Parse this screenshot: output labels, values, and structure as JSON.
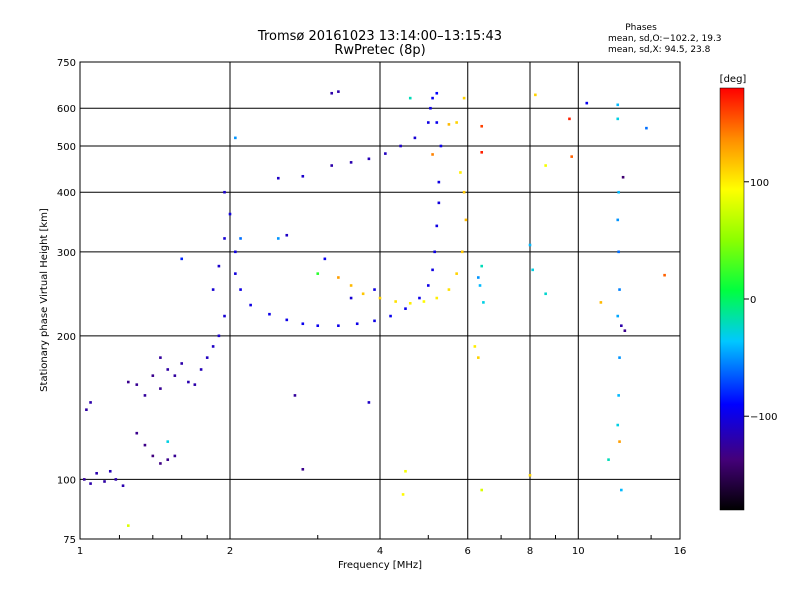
{
  "header": {
    "title_line1": "Tromsø 20161023 13:14:00–13:15:43",
    "title_line2": "RwPretec (8p)"
  },
  "info": {
    "title": "Phases",
    "line_o": "mean, sd,O:−102.2, 19.3",
    "line_x": "mean, sd,X:  94.5, 23.8"
  },
  "colorbar": {
    "unit": "[deg]",
    "range": [
      -180,
      180
    ],
    "ticks": [
      {
        "value": 100,
        "label": "100"
      },
      {
        "value": 0,
        "label": "0"
      },
      {
        "value": -100,
        "label": "−100"
      }
    ]
  },
  "chart_data": {
    "type": "scatter",
    "title": "Tromsø 20161023 13:14:00–13:15:43",
    "subtitle": "RwPretec (8p)",
    "xlabel": "Frequency [MHz]",
    "ylabel": "Stationary phase Virtual Height [km]",
    "x_scale": "log",
    "y_scale": "log",
    "xlim": [
      1,
      16
    ],
    "ylim": [
      75,
      750
    ],
    "x_ticks": [
      {
        "value": 1,
        "label": "1"
      },
      {
        "value": 2,
        "label": "2"
      },
      {
        "value": 4,
        "label": "4"
      },
      {
        "value": 6,
        "label": "6"
      },
      {
        "value": 8,
        "label": "8"
      },
      {
        "value": 10,
        "label": "10"
      },
      {
        "value": 16,
        "label": "16"
      }
    ],
    "y_ticks": [
      {
        "value": 75,
        "label": "75"
      },
      {
        "value": 100,
        "label": "100"
      },
      {
        "value": 200,
        "label": "200"
      },
      {
        "value": 300,
        "label": "300"
      },
      {
        "value": 400,
        "label": "400"
      },
      {
        "value": 500,
        "label": "500"
      },
      {
        "value": 600,
        "label": "600"
      },
      {
        "value": 750,
        "label": "750"
      }
    ],
    "grid": true,
    "color_by": "phase_deg",
    "series": [
      {
        "points": [
          [
            1.02,
            100,
            -125
          ],
          [
            1.05,
            98,
            -120
          ],
          [
            1.08,
            103,
            -118
          ],
          [
            1.12,
            99,
            -122
          ],
          [
            1.15,
            104,
            -115
          ],
          [
            1.18,
            100,
            -120
          ],
          [
            1.22,
            97,
            -118
          ],
          [
            1.03,
            140,
            -122
          ],
          [
            1.05,
            145,
            -120
          ],
          [
            1.25,
            160,
            -130
          ],
          [
            1.3,
            158,
            -128
          ],
          [
            1.35,
            150,
            -125
          ],
          [
            1.4,
            165,
            -130
          ],
          [
            1.45,
            155,
            -128
          ],
          [
            1.3,
            125,
            -130
          ],
          [
            1.35,
            118,
            -132
          ],
          [
            1.4,
            112,
            -135
          ],
          [
            1.45,
            108,
            -133
          ],
          [
            1.5,
            110,
            -130
          ],
          [
            1.55,
            112,
            -128
          ],
          [
            1.45,
            180,
            -125
          ],
          [
            1.5,
            170,
            -122
          ],
          [
            1.55,
            165,
            -124
          ],
          [
            1.6,
            175,
            -120
          ],
          [
            1.65,
            160,
            -118
          ],
          [
            1.7,
            158,
            -120
          ],
          [
            1.75,
            170,
            -115
          ],
          [
            1.8,
            180,
            -112
          ],
          [
            1.85,
            190,
            -110
          ],
          [
            1.9,
            200,
            -108
          ],
          [
            1.95,
            220,
            -105
          ],
          [
            1.85,
            250,
            -105
          ],
          [
            1.9,
            280,
            -108
          ],
          [
            1.95,
            320,
            -105
          ],
          [
            2.0,
            360,
            -102
          ],
          [
            1.95,
            400,
            -108
          ],
          [
            2.05,
            300,
            -100
          ],
          [
            2.05,
            270,
            -102
          ],
          [
            2.1,
            250,
            -100
          ],
          [
            2.2,
            232,
            -100
          ],
          [
            2.4,
            222,
            -98
          ],
          [
            2.6,
            216,
            -98
          ],
          [
            2.8,
            212,
            -96
          ],
          [
            3.0,
            210,
            -96
          ],
          [
            3.3,
            210,
            -98
          ],
          [
            3.6,
            212,
            -98
          ],
          [
            3.9,
            215,
            -98
          ],
          [
            4.2,
            220,
            -96
          ],
          [
            4.5,
            228,
            -96
          ],
          [
            4.8,
            240,
            -98
          ],
          [
            5.0,
            255,
            -98
          ],
          [
            5.1,
            275,
            -100
          ],
          [
            5.15,
            300,
            -100
          ],
          [
            5.2,
            340,
            -100
          ],
          [
            5.25,
            380,
            -102
          ],
          [
            5.25,
            420,
            -100
          ],
          [
            5.3,
            500,
            -98
          ],
          [
            5.2,
            560,
            -96
          ],
          [
            2.5,
            428,
            -110
          ],
          [
            2.8,
            432,
            -108
          ],
          [
            3.2,
            455,
            -120
          ],
          [
            3.5,
            462,
            -118
          ],
          [
            3.8,
            470,
            -115
          ],
          [
            4.1,
            482,
            -112
          ],
          [
            4.4,
            500,
            -110
          ],
          [
            4.7,
            520,
            -105
          ],
          [
            5.0,
            560,
            -100
          ],
          [
            5.05,
            600,
            -98
          ],
          [
            5.1,
            630,
            -95
          ],
          [
            5.2,
            645,
            -90
          ],
          [
            2.05,
            520,
            -50
          ],
          [
            3.2,
            645,
            -120
          ],
          [
            3.3,
            650,
            -120
          ],
          [
            2.6,
            325,
            -110
          ],
          [
            3.1,
            290,
            -95
          ],
          [
            2.8,
            105,
            -130
          ],
          [
            2.7,
            150,
            -125
          ],
          [
            3.8,
            145,
            -110
          ],
          [
            2.5,
            320,
            -50
          ],
          [
            2.1,
            320,
            -60
          ],
          [
            1.6,
            290,
            -80
          ],
          [
            1.25,
            80,
            80
          ],
          [
            1.5,
            120,
            -30
          ]
        ]
      },
      {
        "points": [
          [
            3.3,
            265,
            130
          ],
          [
            3.5,
            255,
            120
          ],
          [
            3.7,
            245,
            115
          ],
          [
            4.0,
            240,
            110
          ],
          [
            4.3,
            236,
            105
          ],
          [
            4.6,
            234,
            100
          ],
          [
            4.9,
            236,
            95
          ],
          [
            5.2,
            240,
            100
          ],
          [
            5.5,
            250,
            105
          ],
          [
            5.7,
            270,
            110
          ],
          [
            5.85,
            300,
            115
          ],
          [
            5.95,
            350,
            120
          ],
          [
            5.9,
            400,
            115
          ],
          [
            5.8,
            440,
            100
          ],
          [
            5.1,
            480,
            140
          ],
          [
            5.5,
            555,
            120
          ],
          [
            5.7,
            560,
            110
          ],
          [
            6.4,
            550,
            160
          ],
          [
            6.4,
            485,
            170
          ],
          [
            4.6,
            630,
            -20
          ],
          [
            5.9,
            630,
            110
          ],
          [
            6.2,
            190,
            100
          ],
          [
            6.3,
            180,
            110
          ],
          [
            6.4,
            95,
            80
          ],
          [
            8.2,
            640,
            110
          ],
          [
            8.6,
            455,
            90
          ],
          [
            9.6,
            570,
            170
          ],
          [
            9.7,
            475,
            150
          ],
          [
            8.0,
            102,
            110
          ],
          [
            4.5,
            104,
            90
          ],
          [
            4.45,
            93,
            95
          ],
          [
            12.1,
            120,
            130
          ],
          [
            11.1,
            235,
            120
          ],
          [
            14.9,
            268,
            150
          ],
          [
            3.5,
            240,
            -105
          ],
          [
            3.9,
            250,
            -100
          ],
          [
            3.0,
            270,
            20
          ]
        ]
      },
      {
        "points": [
          [
            6.3,
            265,
            -50
          ],
          [
            6.35,
            255,
            -40
          ],
          [
            6.45,
            235,
            -30
          ],
          [
            6.4,
            280,
            -20
          ],
          [
            8.0,
            310,
            -40
          ],
          [
            8.1,
            275,
            -30
          ],
          [
            8.6,
            245,
            -25
          ],
          [
            10.4,
            615,
            -95
          ],
          [
            12.0,
            610,
            -40
          ],
          [
            12.0,
            570,
            -30
          ],
          [
            12.05,
            400,
            -40
          ],
          [
            12.0,
            350,
            -50
          ],
          [
            12.05,
            300,
            -60
          ],
          [
            12.1,
            250,
            -55
          ],
          [
            12.0,
            220,
            -45
          ],
          [
            12.1,
            180,
            -50
          ],
          [
            12.05,
            150,
            -40
          ],
          [
            12.0,
            130,
            -30
          ],
          [
            12.2,
            95,
            -40
          ],
          [
            11.5,
            110,
            -20
          ],
          [
            13.7,
            545,
            -60
          ],
          [
            12.2,
            210,
            -120
          ],
          [
            12.4,
            205,
            -130
          ],
          [
            12.3,
            430,
            -140
          ]
        ]
      }
    ]
  }
}
